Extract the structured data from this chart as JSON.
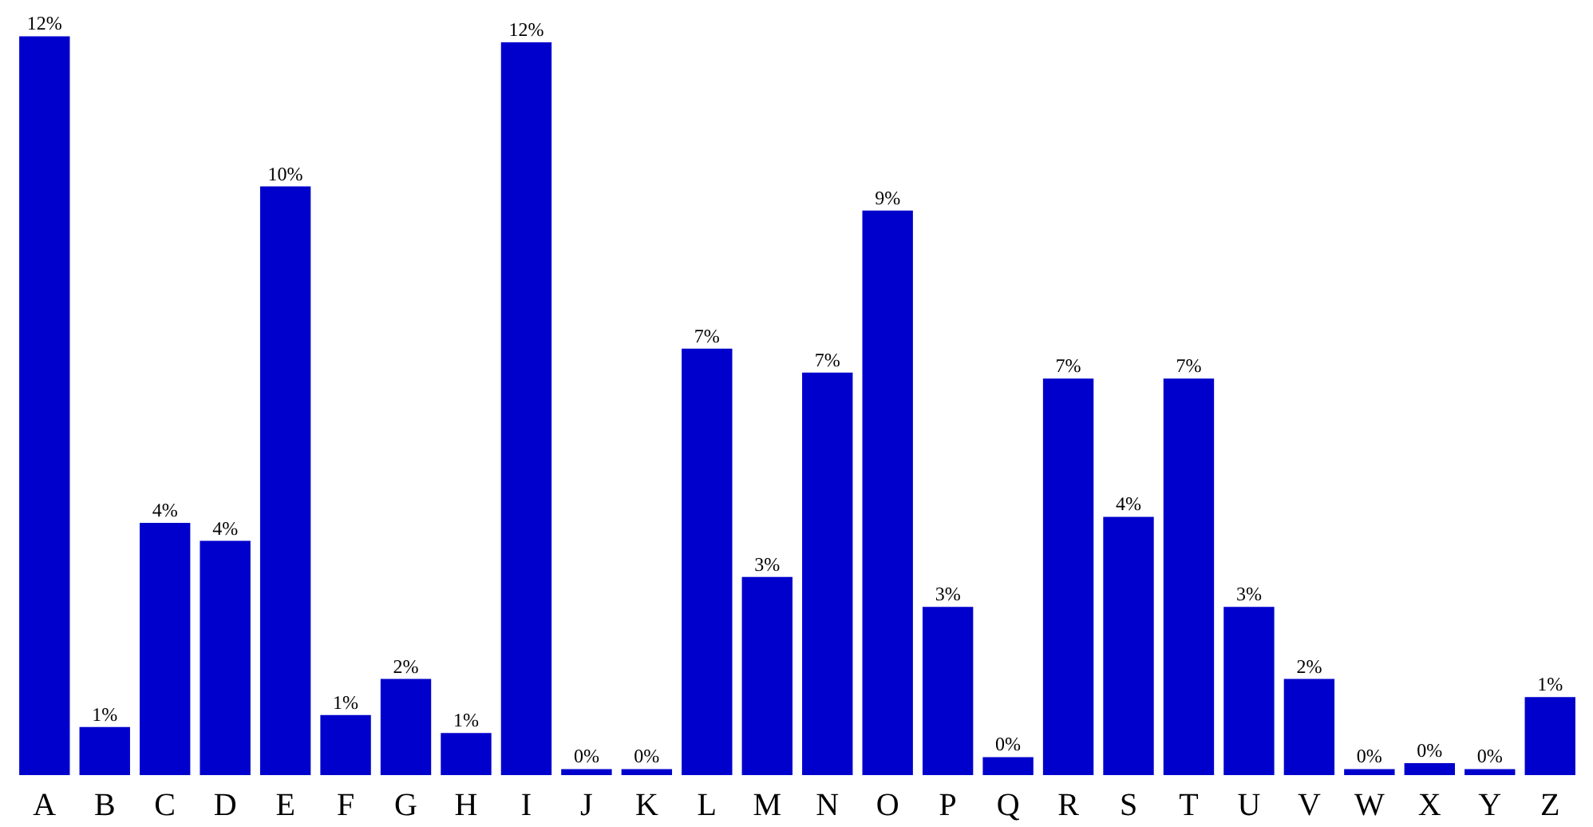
{
  "chart_data": {
    "type": "bar",
    "categories": [
      "A",
      "B",
      "C",
      "D",
      "E",
      "F",
      "G",
      "H",
      "I",
      "J",
      "K",
      "L",
      "M",
      "N",
      "O",
      "P",
      "Q",
      "R",
      "S",
      "T",
      "U",
      "V",
      "W",
      "X",
      "Y",
      "Z"
    ],
    "values": [
      12.3,
      0.8,
      4.2,
      3.9,
      9.8,
      1.0,
      1.6,
      0.7,
      12.2,
      0.1,
      0.1,
      7.1,
      3.3,
      6.7,
      9.4,
      2.8,
      0.3,
      6.6,
      4.3,
      6.6,
      2.8,
      1.6,
      0.1,
      0.2,
      0.1,
      1.3
    ],
    "value_labels": [
      "12%",
      "1%",
      "4%",
      "4%",
      "10%",
      "1%",
      "2%",
      "1%",
      "12%",
      "0%",
      "0%",
      "7%",
      "3%",
      "7%",
      "9%",
      "3%",
      "0%",
      "7%",
      "4%",
      "7%",
      "3%",
      "2%",
      "0%",
      "0%",
      "0%",
      "1%"
    ],
    "color": "#0000cc",
    "grid": false
  }
}
